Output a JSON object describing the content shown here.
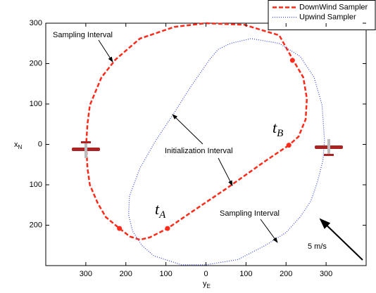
{
  "chart_data": {
    "type": "line",
    "xlabel": {
      "main": "y",
      "sub": "E"
    },
    "ylabel": {
      "main": "x",
      "sub": "N"
    },
    "xlim": [
      -400,
      400
    ],
    "xticks": [
      {
        "value": -300,
        "label": "300"
      },
      {
        "value": -200,
        "label": "200"
      },
      {
        "value": -100,
        "label": "100"
      },
      0,
      100,
      200,
      300
    ],
    "ylim": [
      -300,
      300
    ],
    "yticks": [
      {
        "value": -200,
        "label": "200"
      },
      {
        "value": -100,
        "label": "100"
      },
      0,
      100,
      200,
      300
    ],
    "legend": "top-right",
    "series": [
      {
        "name": "DownWind Sampler",
        "color": "#ff2a1a",
        "style": "dashed",
        "x": [
          207,
          150,
          50,
          -40,
          -96,
          -140,
          -165,
          -190,
          -216,
          -250,
          -270,
          -290,
          -296,
          -299,
          -296,
          -290,
          -261,
          -226,
          -165,
          -78,
          0,
          96,
          183,
          217,
          243,
          252,
          249,
          231,
          207
        ],
        "values": [
          -2,
          -40,
          -110,
          -170,
          -208,
          -230,
          -236,
          -228,
          -208,
          -180,
          -146,
          -100,
          -59,
          0,
          50,
          97,
          166,
          210,
          262,
          291,
          300,
          296,
          270,
          210,
          166,
          114,
          62,
          19,
          -2
        ]
      },
      {
        "name": "Upwind Sampler",
        "color": "#3344dd",
        "style": "dotted",
        "x": [
          0,
          80,
          148,
          200,
          235,
          262,
          278,
          292,
          296,
          290,
          270,
          235,
          183,
          113,
          61,
          30,
          9,
          -40,
          -78,
          -125,
          -165,
          -191,
          -193,
          -183,
          -160,
          -130,
          -61,
          0
        ],
        "values": [
          -298,
          -285,
          -250,
          -218,
          -180,
          -140,
          -94,
          -40,
          10,
          97,
          166,
          218,
          250,
          262,
          250,
          235,
          210,
          140,
          80,
          10,
          -59,
          -128,
          -175,
          -215,
          -250,
          -276,
          -298,
          -298
        ]
      }
    ],
    "markers": {
      "color": "#ff2a1a",
      "x": [
        207,
        -96,
        -216,
        216
      ],
      "values": [
        -2,
        -208,
        -208,
        208
      ]
    },
    "annotations": {
      "sampling_top": "Sampling Interval",
      "sampling_bottom": "Sampling Interval",
      "initialization": "Initialization Interval",
      "wind": "5 m/s",
      "tA": {
        "main": "t",
        "sub": "A"
      },
      "tB": {
        "main": "t",
        "sub": "B"
      }
    }
  }
}
